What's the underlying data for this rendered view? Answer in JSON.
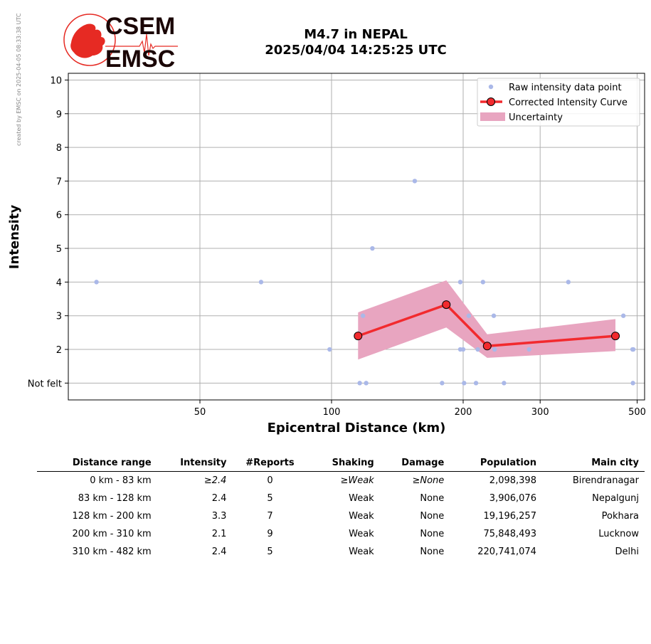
{
  "created_note": "created by EMSC on 2025-04-05 08:33:38 UTC",
  "logo": {
    "line1": "CSEM",
    "line2": "EMSC",
    "colors": {
      "red": "#e62a23",
      "dark": "#1a0505"
    }
  },
  "title": {
    "line1": "M4.7 in NEPAL",
    "line2": "2025/04/04 14:25:25 UTC"
  },
  "chart_data": {
    "type": "scatter",
    "xlabel": "Epicentral Distance (km)",
    "ylabel": "Intensity",
    "x_scale": "log",
    "xlim": [
      25,
      520
    ],
    "ylim": [
      0.5,
      10.2
    ],
    "x_ticks": [
      50,
      100,
      200,
      300,
      500
    ],
    "x_tick_labels": [
      "50",
      "100",
      "200",
      "300",
      "500"
    ],
    "y_ticks": [
      1,
      2,
      3,
      4,
      5,
      6,
      7,
      8,
      9,
      10
    ],
    "y_tick_labels": [
      "Not felt",
      "2",
      "3",
      "4",
      "5",
      "6",
      "7",
      "8",
      "9",
      "10"
    ],
    "grid": true,
    "legend_position": "top-right",
    "legend": [
      {
        "label": "Raw intensity data point",
        "kind": "point",
        "color": "#aab8e8"
      },
      {
        "label": "Corrected Intensity Curve",
        "kind": "line",
        "color": "#f22a2e"
      },
      {
        "label": "Uncertainty",
        "kind": "band",
        "color": "#e8a5c0"
      }
    ],
    "raw_points": [
      {
        "x": 29,
        "y": 4
      },
      {
        "x": 69,
        "y": 4
      },
      {
        "x": 99,
        "y": 2
      },
      {
        "x": 116,
        "y": 1
      },
      {
        "x": 118,
        "y": 3
      },
      {
        "x": 120,
        "y": 1
      },
      {
        "x": 124,
        "y": 5
      },
      {
        "x": 155,
        "y": 7
      },
      {
        "x": 179,
        "y": 1
      },
      {
        "x": 197,
        "y": 4
      },
      {
        "x": 197,
        "y": 2
      },
      {
        "x": 200,
        "y": 2
      },
      {
        "x": 201,
        "y": 1
      },
      {
        "x": 206,
        "y": 3
      },
      {
        "x": 214,
        "y": 1
      },
      {
        "x": 216,
        "y": 2
      },
      {
        "x": 222,
        "y": 4
      },
      {
        "x": 235,
        "y": 3
      },
      {
        "x": 236,
        "y": 2
      },
      {
        "x": 248,
        "y": 1
      },
      {
        "x": 283,
        "y": 2
      },
      {
        "x": 348,
        "y": 4
      },
      {
        "x": 465,
        "y": 3
      },
      {
        "x": 488,
        "y": 2
      },
      {
        "x": 490,
        "y": 2
      },
      {
        "x": 489,
        "y": 1
      }
    ],
    "curve": {
      "x": [
        115,
        183,
        227,
        446
      ],
      "y": [
        2.4,
        3.33,
        2.1,
        2.4
      ]
    },
    "uncertainty": {
      "x": [
        115,
        183,
        227,
        446
      ],
      "upper": [
        3.1,
        4.05,
        2.45,
        2.9
      ],
      "lower": [
        1.7,
        2.65,
        1.75,
        1.95
      ]
    },
    "colors": {
      "point": "#aab8e8",
      "curve": "#f22a2e",
      "band": "#e8a5c0",
      "grid": "#b0b0b0"
    }
  },
  "table": {
    "headers": [
      "Distance range",
      "Intensity",
      "#Reports",
      "Shaking",
      "Damage",
      "Population",
      "Main city"
    ],
    "rows": [
      {
        "range": "0 km -   83 km",
        "intensity": "≥2.4",
        "reports": "0",
        "shaking": "≥Weak",
        "damage": "≥None",
        "population": "2,098,398",
        "city": "Birendranagar",
        "italic": true
      },
      {
        "range": "83 km -  128 km",
        "intensity": "2.4",
        "reports": "5",
        "shaking": "Weak",
        "damage": "None",
        "population": "3,906,076",
        "city": "Nepalgunj",
        "italic": false
      },
      {
        "range": "128 km -  200 km",
        "intensity": "3.3",
        "reports": "7",
        "shaking": "Weak",
        "damage": "None",
        "population": "19,196,257",
        "city": "Pokhara",
        "italic": false
      },
      {
        "range": "200 km -  310 km",
        "intensity": "2.1",
        "reports": "9",
        "shaking": "Weak",
        "damage": "None",
        "population": "75,848,493",
        "city": "Lucknow",
        "italic": false
      },
      {
        "range": "310 km -  482 km",
        "intensity": "2.4",
        "reports": "5",
        "shaking": "Weak",
        "damage": "None",
        "population": "220,741,074",
        "city": "Delhi",
        "italic": false
      }
    ]
  }
}
